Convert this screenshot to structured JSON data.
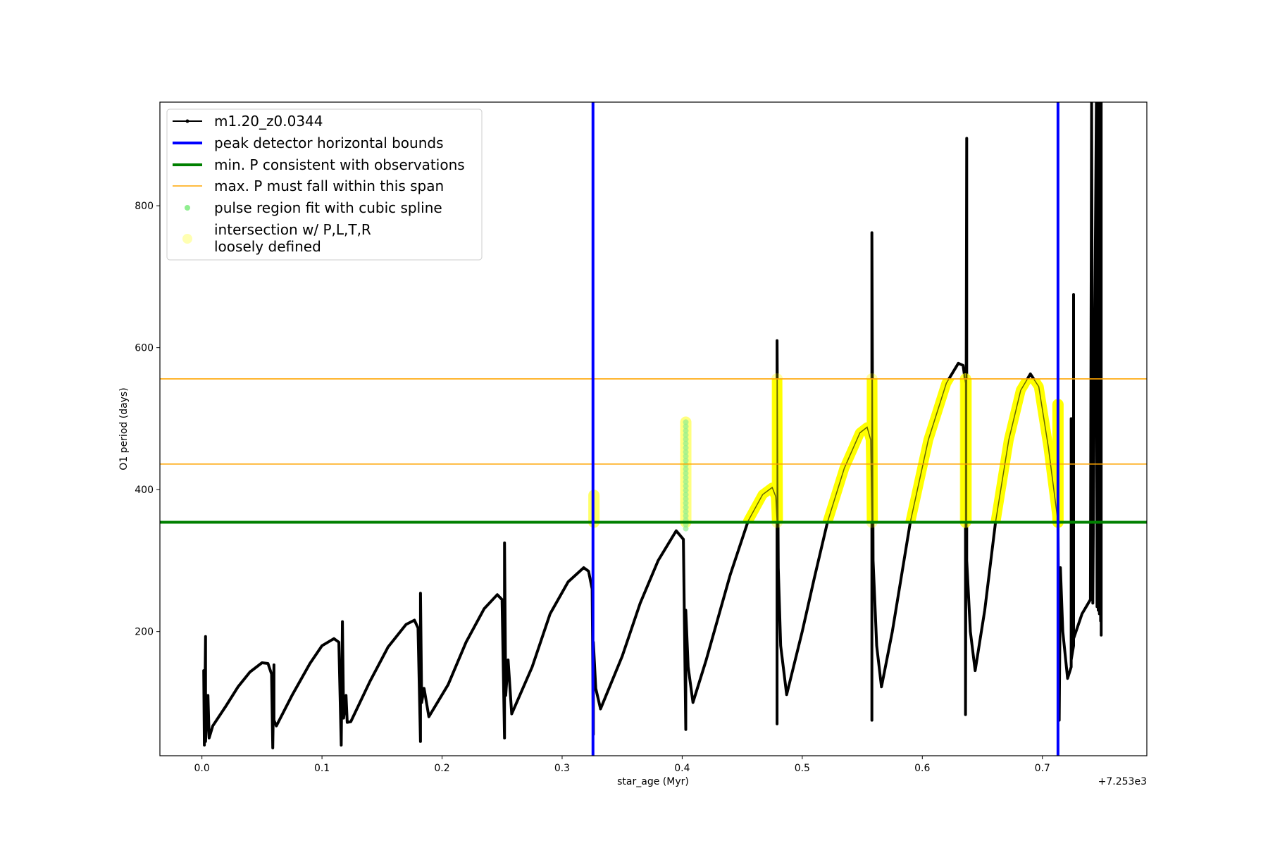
{
  "chart_data": {
    "type": "line",
    "title": "",
    "xlabel": "star_age (Myr)",
    "ylabel": "O1 period (days)",
    "x_offset_label": "+7.253e3",
    "xlim": [
      -0.035,
      0.787
    ],
    "ylim": [
      25,
      946
    ],
    "grid": false,
    "x_ticks": [
      0.0,
      0.1,
      0.2,
      0.3,
      0.4,
      0.5,
      0.6,
      0.7
    ],
    "x_tick_labels": [
      "0.0",
      "0.1",
      "0.2",
      "0.3",
      "0.4",
      "0.5",
      "0.6",
      "0.7"
    ],
    "y_ticks": [
      200,
      400,
      600,
      800
    ],
    "y_tick_labels": [
      "200",
      "400",
      "600",
      "800"
    ],
    "legend_placement": "upper-left",
    "colors": {
      "track": "#000000",
      "bounds": "#0000ff",
      "min_p": "#008000",
      "max_p": "#ffa500",
      "spline": "#90ee90",
      "intersection": "#ffff00"
    },
    "series": [
      {
        "name": "m1.20_z0.0344",
        "points": [
          [
            0.0015,
            145
          ],
          [
            0.002,
            40
          ],
          [
            0.003,
            193
          ],
          [
            0.003,
            45
          ],
          [
            0.005,
            110
          ],
          [
            0.006,
            50
          ],
          [
            0.009,
            67
          ],
          [
            0.02,
            95
          ],
          [
            0.03,
            122
          ],
          [
            0.04,
            143
          ],
          [
            0.05,
            156
          ],
          [
            0.055,
            155
          ],
          [
            0.058,
            140
          ],
          [
            0.059,
            36
          ],
          [
            0.06,
            153
          ],
          [
            0.06,
            75
          ],
          [
            0.062,
            67
          ],
          [
            0.075,
            110
          ],
          [
            0.09,
            155
          ],
          [
            0.1,
            180
          ],
          [
            0.11,
            190
          ],
          [
            0.114,
            185
          ],
          [
            0.116,
            40
          ],
          [
            0.117,
            214
          ],
          [
            0.118,
            78
          ],
          [
            0.12,
            110
          ],
          [
            0.121,
            72
          ],
          [
            0.124,
            73
          ],
          [
            0.14,
            130
          ],
          [
            0.155,
            178
          ],
          [
            0.17,
            210
          ],
          [
            0.177,
            216
          ],
          [
            0.18,
            205
          ],
          [
            0.182,
            45
          ],
          [
            0.182,
            254
          ],
          [
            0.183,
            100
          ],
          [
            0.185,
            120
          ],
          [
            0.189,
            80
          ],
          [
            0.205,
            125
          ],
          [
            0.22,
            185
          ],
          [
            0.235,
            232
          ],
          [
            0.246,
            252
          ],
          [
            0.25,
            245
          ],
          [
            0.252,
            50
          ],
          [
            0.252,
            325
          ],
          [
            0.253,
            110
          ],
          [
            0.255,
            160
          ],
          [
            0.258,
            84
          ],
          [
            0.275,
            150
          ],
          [
            0.29,
            225
          ],
          [
            0.305,
            270
          ],
          [
            0.318,
            290
          ],
          [
            0.322,
            285
          ],
          [
            0.325,
            260
          ],
          [
            0.326,
            55
          ],
          [
            0.326,
            185
          ],
          [
            0.328,
            120
          ],
          [
            0.332,
            91
          ],
          [
            0.35,
            165
          ],
          [
            0.365,
            240
          ],
          [
            0.38,
            300
          ],
          [
            0.395,
            342
          ],
          [
            0.401,
            330
          ],
          [
            0.403,
            62
          ],
          [
            0.403,
            230
          ],
          [
            0.405,
            150
          ],
          [
            0.409,
            100
          ],
          [
            0.42,
            160
          ],
          [
            0.44,
            280
          ],
          [
            0.455,
            356
          ],
          [
            0.467,
            393
          ],
          [
            0.475,
            403
          ],
          [
            0.478,
            390
          ],
          [
            0.479,
            355
          ],
          [
            0.479,
            70
          ],
          [
            0.479,
            610
          ],
          [
            0.48,
            290
          ],
          [
            0.482,
            180
          ],
          [
            0.487,
            111
          ],
          [
            0.5,
            200
          ],
          [
            0.51,
            275
          ],
          [
            0.521,
            354
          ],
          [
            0.535,
            430
          ],
          [
            0.548,
            480
          ],
          [
            0.554,
            488
          ],
          [
            0.557,
            470
          ],
          [
            0.558,
            360
          ],
          [
            0.558,
            75
          ],
          [
            0.558,
            762
          ],
          [
            0.559,
            300
          ],
          [
            0.562,
            180
          ],
          [
            0.566,
            122
          ],
          [
            0.575,
            200
          ],
          [
            0.59,
            354
          ],
          [
            0.605,
            470
          ],
          [
            0.62,
            550
          ],
          [
            0.63,
            578
          ],
          [
            0.634,
            575
          ],
          [
            0.636,
            550
          ],
          [
            0.636,
            83
          ],
          [
            0.637,
            895
          ],
          [
            0.637,
            300
          ],
          [
            0.64,
            200
          ],
          [
            0.644,
            145
          ],
          [
            0.652,
            230
          ],
          [
            0.661,
            354
          ],
          [
            0.672,
            470
          ],
          [
            0.682,
            540
          ],
          [
            0.69,
            563
          ],
          [
            0.697,
            545
          ],
          [
            0.705,
            460
          ],
          [
            0.713,
            354
          ],
          [
            0.714,
            75
          ],
          [
            0.715,
            290
          ],
          [
            0.717,
            200
          ],
          [
            0.721,
            134
          ],
          [
            0.724,
            150
          ],
          [
            0.724,
            500
          ],
          [
            0.724,
            160
          ],
          [
            0.726,
            180
          ],
          [
            0.726,
            675
          ],
          [
            0.726,
            190
          ],
          [
            0.733,
            225
          ],
          [
            0.74,
            245
          ],
          [
            0.741,
            946
          ],
          [
            0.742,
            240
          ],
          [
            0.745,
            946
          ],
          [
            0.7455,
            235
          ],
          [
            0.746,
            946
          ],
          [
            0.7465,
            230
          ],
          [
            0.747,
            946
          ],
          [
            0.7475,
            225
          ],
          [
            0.748,
            946
          ],
          [
            0.7485,
            215
          ],
          [
            0.749,
            946
          ],
          [
            0.749,
            195
          ]
        ]
      },
      {
        "name": "peak detector horizontal bounds",
        "vertical_x": [
          0.3257,
          0.713
        ]
      },
      {
        "name": "min. P consistent with observations",
        "horizontal_y": [
          354
        ]
      },
      {
        "name": "max. P must fall within this span",
        "horizontal_y": [
          436,
          556
        ]
      },
      {
        "name": "pulse region fit with cubic spline",
        "x": 0.403,
        "y_range": [
          345,
          495
        ]
      },
      {
        "name": "intersection w/ P,L,T,R\nloosely defined",
        "y_range": [
          354,
          556
        ],
        "spike_bands": [
          [
            0.3265,
            354,
            392,
            0.6
          ],
          [
            0.403,
            354,
            495,
            0.5
          ],
          [
            0.479,
            354,
            556,
            0.35
          ],
          [
            0.558,
            354,
            556,
            0.35
          ],
          [
            0.636,
            354,
            556,
            0.75
          ],
          [
            0.713,
            354,
            520,
            1.0
          ]
        ]
      }
    ]
  },
  "legend": {
    "entries": [
      "m1.20_z0.0344",
      "peak detector horizontal bounds",
      "min. P consistent with observations",
      "max. P must fall within this span",
      "pulse region fit with cubic spline"
    ],
    "last_entry_line1": "intersection w/ P,L,T,R",
    "last_entry_line2": "loosely defined"
  }
}
